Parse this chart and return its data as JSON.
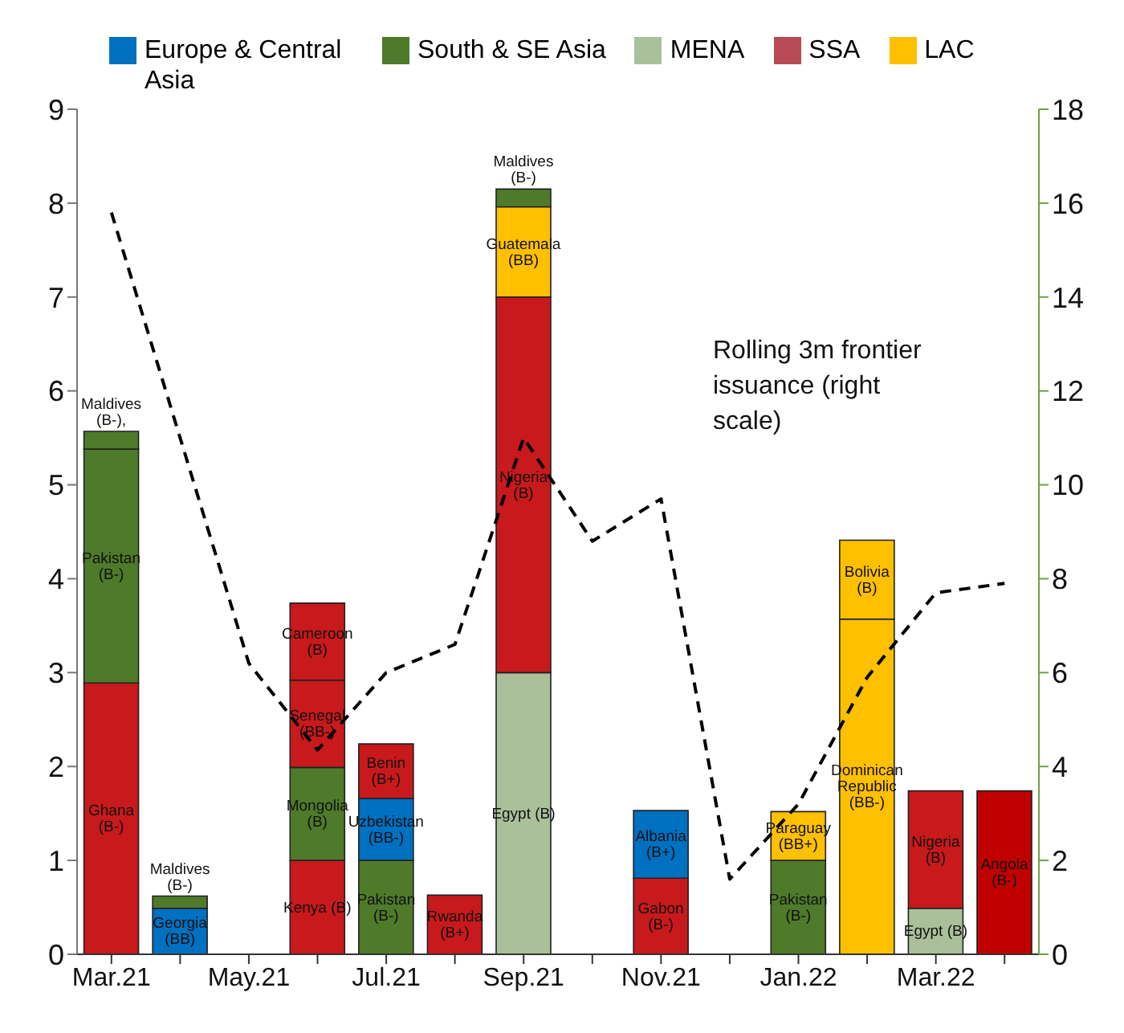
{
  "chart_data": {
    "type": "bar",
    "stacked": true,
    "categories": [
      "Mar.21",
      null,
      "May.21",
      null,
      "Jul.21",
      null,
      "Sep.21",
      null,
      "Nov.21",
      null,
      "Jan.22",
      null,
      "Mar.22",
      null
    ],
    "series": [
      {
        "colors": [
          "#c8191c",
          "#0070c0",
          null,
          "#c8191c",
          "#4e7a2a",
          "#c8191c",
          "#a9c09a",
          null,
          "#c8191c",
          null,
          "#4e7a2a",
          "#ffc000",
          "#a9c09a",
          "#c00000"
        ],
        "values": [
          2.89,
          0.49,
          null,
          1.0,
          1.0,
          0.63,
          3.0,
          null,
          0.81,
          null,
          1.0,
          3.57,
          0.49,
          1.74
        ],
        "value_labels": [
          "Ghana (B-)",
          "Georgia (BB)",
          null,
          "Kenya (B)",
          "Pakistan (B-)",
          "Rwanda (B+)",
          "Egypt (B)",
          null,
          "Gabon (B-)",
          null,
          "Pakistan (B-)",
          "Dominican Republic (BB-)",
          "Egypt (B)",
          "Angola (B-)"
        ]
      },
      {
        "colors": [
          "#4e7a2a",
          "#4e7a2a",
          null,
          "#4e7a2a",
          "#0070c0",
          null,
          "#c8191c",
          null,
          "#0070c0",
          null,
          "#ffc000",
          "#ffc000",
          "#c8191c",
          null
        ],
        "values": [
          2.49,
          0.13,
          null,
          0.99,
          0.66,
          null,
          4.0,
          null,
          0.72,
          null,
          0.52,
          0.84,
          1.25,
          null
        ],
        "value_labels": [
          "Pakistan (B-)",
          "Maldives (B-)",
          null,
          "Mongolia (B)",
          "Uzbekistan (BB-)",
          null,
          "Nigeria (B)",
          null,
          "Albania (B+)",
          null,
          "Paraguay (BB+)",
          "Bolivia (B)",
          "Nigeria (B)",
          null
        ]
      },
      {
        "colors": [
          "#4e7a2a",
          null,
          null,
          "#c8191c",
          "#c8191c",
          null,
          "#ffc000",
          null,
          null,
          null,
          null,
          null,
          null,
          null
        ],
        "values": [
          0.19,
          null,
          null,
          0.93,
          0.58,
          null,
          0.96,
          null,
          null,
          null,
          null,
          null,
          null,
          null
        ],
        "value_labels": [
          "Maldives (B-),",
          null,
          null,
          "Senegal (BB-)",
          "Benin (B+)",
          null,
          "Guatemala (BB)",
          null,
          null,
          null,
          null,
          null,
          null,
          null
        ]
      },
      {
        "colors": [
          null,
          null,
          null,
          "#c8191c",
          null,
          null,
          "#4e7a2a",
          null,
          null,
          null,
          null,
          null,
          null,
          null
        ],
        "values": [
          null,
          null,
          null,
          0.82,
          null,
          null,
          0.19,
          null,
          null,
          null,
          null,
          null,
          null,
          null
        ],
        "value_labels": [
          null,
          null,
          null,
          "Cameroon (B)",
          null,
          null,
          "Maldives (B-)",
          null,
          null,
          null,
          null,
          null,
          null,
          null
        ]
      },
      {
        "name": "Europe & Central Asia",
        "color": "#0070c0",
        "values": [
          null,
          null,
          null,
          null,
          null,
          null,
          null,
          null,
          null,
          null,
          null,
          null,
          null,
          null
        ]
      },
      {
        "name": "South & SE Asia",
        "color": "#4e7a2a",
        "values": [
          null,
          null,
          null,
          null,
          null,
          null,
          null,
          null,
          null,
          null,
          null,
          null,
          null,
          null
        ]
      },
      {
        "name": "MENA",
        "color": "#a9c09a",
        "values": [
          null,
          null,
          null,
          null,
          null,
          null,
          null,
          null,
          null,
          null,
          null,
          null,
          null,
          null
        ]
      },
      {
        "name": "SSA",
        "color": "#b84a55",
        "values": [
          null,
          null,
          null,
          null,
          null,
          null,
          null,
          null,
          null,
          null,
          null,
          null,
          null,
          null
        ]
      },
      {
        "name": "LAC",
        "color": "#ffc000",
        "values": [
          null,
          null,
          null,
          null,
          null,
          null,
          null,
          null,
          null,
          null,
          null,
          null,
          null,
          null
        ]
      },
      {
        "type": "line",
        "axis": "y2",
        "color": "#000000",
        "line_style": "dashed",
        "marker": "none",
        "values": [
          15.8,
          11.0,
          6.2,
          4.35,
          6.0,
          6.6,
          11.0,
          8.8,
          9.7,
          1.6,
          3.2,
          5.9,
          7.7,
          7.9
        ]
      }
    ],
    "ylim": [
      0,
      9
    ],
    "yticks": [
      0,
      1,
      2,
      3,
      4,
      5,
      6,
      7,
      8,
      9
    ],
    "y2lim": [
      0,
      18
    ],
    "y2ticks": [
      0,
      2,
      4,
      6,
      8,
      10,
      12,
      14,
      16,
      18
    ],
    "annotations": [
      "Rolling 3m frontier issuance (right scale)"
    ],
    "legend": "top"
  }
}
